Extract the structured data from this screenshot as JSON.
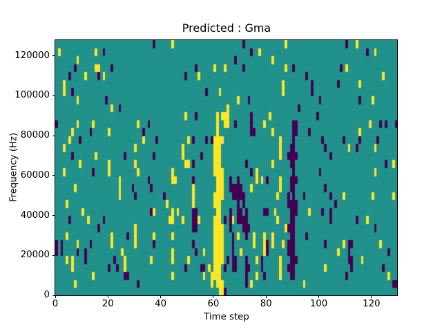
{
  "figure": {
    "title": "Predicted : Gma",
    "xlabel": "Time step",
    "ylabel": "Frequency (Hz)"
  },
  "chart_data": {
    "type": "heatmap",
    "title": "Predicted : Gma",
    "xlabel": "Time step",
    "ylabel": "Frequency (Hz)",
    "xlim": [
      0,
      130
    ],
    "ylim": [
      0,
      128000
    ],
    "grid_cols": 130,
    "grid_rows": 32,
    "x_ticks": [
      0,
      20,
      40,
      60,
      80,
      100,
      120
    ],
    "x_tick_labels": [
      "0",
      "20",
      "40",
      "60",
      "80",
      "100",
      "120"
    ],
    "y_ticks": [
      0,
      20000,
      40000,
      60000,
      80000,
      100000,
      120000
    ],
    "y_tick_labels": [
      "0",
      "20000",
      "40000",
      "60000",
      "80000",
      "100000",
      "120000"
    ],
    "legend": null,
    "grid": false,
    "colors": {
      "colormap": "viridis",
      "background": "#21918c",
      "high": "#fde725",
      "low": "#440154",
      "spine": "#000000",
      "figure_background": "#ffffff"
    },
    "cells_high": [
      [
        44,
        31
      ],
      [
        87,
        31
      ],
      [
        114,
        31
      ],
      [
        1,
        30
      ],
      [
        15,
        30
      ],
      [
        77,
        30
      ],
      [
        121,
        30
      ],
      [
        8,
        29
      ],
      [
        82,
        29
      ],
      [
        15,
        28
      ],
      [
        16,
        28
      ],
      [
        60,
        28
      ],
      [
        64,
        28
      ],
      [
        87,
        28
      ],
      [
        110,
        28
      ],
      [
        11,
        27
      ],
      [
        18,
        27
      ],
      [
        54,
        27
      ],
      [
        124,
        27
      ],
      [
        3,
        26
      ],
      [
        86,
        26
      ],
      [
        115,
        26
      ],
      [
        3,
        25
      ],
      [
        62,
        25
      ],
      [
        86,
        25
      ],
      [
        8,
        24
      ],
      [
        69,
        24
      ],
      [
        120,
        24
      ],
      [
        21,
        23
      ],
      [
        65,
        23
      ],
      [
        49,
        22
      ],
      [
        61,
        22
      ],
      [
        63,
        22
      ],
      [
        64,
        22
      ],
      [
        65,
        22
      ],
      [
        81,
        22
      ],
      [
        8,
        21
      ],
      [
        14,
        21
      ],
      [
        31,
        21
      ],
      [
        61,
        21
      ],
      [
        64,
        21
      ],
      [
        65,
        21
      ],
      [
        79,
        21
      ],
      [
        119,
        21
      ],
      [
        6,
        20
      ],
      [
        20,
        20
      ],
      [
        61,
        20
      ],
      [
        82,
        20
      ],
      [
        115,
        20
      ],
      [
        5,
        19
      ],
      [
        33,
        19
      ],
      [
        50,
        19
      ],
      [
        60,
        19
      ],
      [
        61,
        19
      ],
      [
        62,
        19
      ],
      [
        63,
        19
      ],
      [
        85,
        19
      ],
      [
        3,
        18
      ],
      [
        30,
        18
      ],
      [
        48,
        18
      ],
      [
        60,
        18
      ],
      [
        61,
        18
      ],
      [
        62,
        18
      ],
      [
        85,
        18
      ],
      [
        111,
        18
      ],
      [
        121,
        18
      ],
      [
        15,
        17
      ],
      [
        48,
        17
      ],
      [
        60,
        17
      ],
      [
        61,
        17
      ],
      [
        62,
        17
      ],
      [
        85,
        17
      ],
      [
        9,
        16
      ],
      [
        20,
        16
      ],
      [
        30,
        16
      ],
      [
        49,
        16
      ],
      [
        50,
        16
      ],
      [
        60,
        16
      ],
      [
        61,
        16
      ],
      [
        62,
        16
      ],
      [
        82,
        16
      ],
      [
        128,
        16
      ],
      [
        3,
        15
      ],
      [
        20,
        15
      ],
      [
        31,
        15
      ],
      [
        44,
        15
      ],
      [
        60,
        15
      ],
      [
        61,
        15
      ],
      [
        62,
        15
      ],
      [
        63,
        15
      ],
      [
        76,
        15
      ],
      [
        121,
        15
      ],
      [
        24,
        14
      ],
      [
        44,
        14
      ],
      [
        45,
        14
      ],
      [
        61,
        14
      ],
      [
        62,
        14
      ],
      [
        63,
        14
      ],
      [
        76,
        14
      ],
      [
        78,
        14
      ],
      [
        85,
        14
      ],
      [
        7,
        13
      ],
      [
        24,
        13
      ],
      [
        52,
        13
      ],
      [
        61,
        13
      ],
      [
        62,
        13
      ],
      [
        63,
        13
      ],
      [
        74,
        13
      ],
      [
        85,
        13
      ],
      [
        24,
        12
      ],
      [
        52,
        12
      ],
      [
        60,
        12
      ],
      [
        61,
        12
      ],
      [
        62,
        12
      ],
      [
        63,
        12
      ],
      [
        84,
        12
      ],
      [
        109,
        12
      ],
      [
        120,
        12
      ],
      [
        128,
        12
      ],
      [
        4,
        11
      ],
      [
        42,
        11
      ],
      [
        52,
        11
      ],
      [
        60,
        11
      ],
      [
        61,
        11
      ],
      [
        62,
        11
      ],
      [
        10,
        10
      ],
      [
        37,
        10
      ],
      [
        44,
        10
      ],
      [
        46,
        10
      ],
      [
        61,
        10
      ],
      [
        62,
        10
      ],
      [
        83,
        10
      ],
      [
        96,
        10
      ],
      [
        12,
        9
      ],
      [
        43,
        9
      ],
      [
        44,
        9
      ],
      [
        48,
        9
      ],
      [
        54,
        9
      ],
      [
        60,
        9
      ],
      [
        61,
        9
      ],
      [
        62,
        9
      ],
      [
        67,
        9
      ],
      [
        84,
        9
      ],
      [
        118,
        9
      ],
      [
        30,
        8
      ],
      [
        60,
        8
      ],
      [
        61,
        8
      ],
      [
        62,
        8
      ],
      [
        63,
        8
      ],
      [
        87,
        8
      ],
      [
        4,
        7
      ],
      [
        21,
        7
      ],
      [
        30,
        7
      ],
      [
        37,
        7
      ],
      [
        44,
        7
      ],
      [
        60,
        7
      ],
      [
        61,
        7
      ],
      [
        62,
        7
      ],
      [
        63,
        7
      ],
      [
        69,
        7
      ],
      [
        75,
        7
      ],
      [
        79,
        7
      ],
      [
        82,
        7
      ],
      [
        8,
        6
      ],
      [
        21,
        6
      ],
      [
        30,
        6
      ],
      [
        60,
        6
      ],
      [
        61,
        6
      ],
      [
        62,
        6
      ],
      [
        63,
        6
      ],
      [
        75,
        6
      ],
      [
        79,
        6
      ],
      [
        82,
        6
      ],
      [
        86,
        6
      ],
      [
        109,
        6
      ],
      [
        123,
        6
      ],
      [
        25,
        5
      ],
      [
        44,
        5
      ],
      [
        56,
        5
      ],
      [
        60,
        5
      ],
      [
        61,
        5
      ],
      [
        62,
        5
      ],
      [
        63,
        5
      ],
      [
        70,
        5
      ],
      [
        79,
        5
      ],
      [
        107,
        5
      ],
      [
        4,
        4
      ],
      [
        6,
        4
      ],
      [
        26,
        4
      ],
      [
        36,
        4
      ],
      [
        44,
        4
      ],
      [
        50,
        4
      ],
      [
        60,
        4
      ],
      [
        61,
        4
      ],
      [
        62,
        4
      ],
      [
        63,
        4
      ],
      [
        76,
        4
      ],
      [
        85,
        4
      ],
      [
        116,
        4
      ],
      [
        6,
        3
      ],
      [
        26,
        3
      ],
      [
        58,
        3
      ],
      [
        60,
        3
      ],
      [
        61,
        3
      ],
      [
        62,
        3
      ],
      [
        85,
        3
      ],
      [
        102,
        3
      ],
      [
        14,
        2
      ],
      [
        44,
        2
      ],
      [
        56,
        2
      ],
      [
        59,
        2
      ],
      [
        60,
        2
      ],
      [
        61,
        2
      ],
      [
        62,
        2
      ],
      [
        76,
        2
      ],
      [
        85,
        2
      ],
      [
        126,
        2
      ],
      [
        7,
        1
      ],
      [
        59,
        1
      ],
      [
        61,
        1
      ],
      [
        62,
        1
      ],
      [
        63,
        1
      ],
      [
        74,
        1
      ],
      [
        94,
        1
      ],
      [
        62,
        0
      ],
      [
        63,
        0
      ]
    ],
    "cells_low": [
      [
        37,
        31
      ],
      [
        71,
        31
      ],
      [
        110,
        31
      ],
      [
        18,
        30
      ],
      [
        74,
        30
      ],
      [
        118,
        30
      ],
      [
        68,
        29
      ],
      [
        7,
        28
      ],
      [
        21,
        28
      ],
      [
        53,
        28
      ],
      [
        71,
        28
      ],
      [
        90,
        28
      ],
      [
        108,
        28
      ],
      [
        5,
        27
      ],
      [
        16,
        27
      ],
      [
        49,
        27
      ],
      [
        95,
        27
      ],
      [
        97,
        26
      ],
      [
        107,
        26
      ],
      [
        6,
        25
      ],
      [
        57,
        25
      ],
      [
        97,
        25
      ],
      [
        19,
        24
      ],
      [
        73,
        24
      ],
      [
        100,
        24
      ],
      [
        115,
        24
      ],
      [
        24,
        23
      ],
      [
        92,
        23
      ],
      [
        53,
        22
      ],
      [
        74,
        22
      ],
      [
        99,
        22
      ],
      [
        0,
        21
      ],
      [
        35,
        21
      ],
      [
        68,
        21
      ],
      [
        74,
        21
      ],
      [
        90,
        21
      ],
      [
        91,
        21
      ],
      [
        123,
        21
      ],
      [
        125,
        21
      ],
      [
        129,
        21
      ],
      [
        13,
        20
      ],
      [
        33,
        20
      ],
      [
        74,
        20
      ],
      [
        75,
        20
      ],
      [
        90,
        20
      ],
      [
        91,
        20
      ],
      [
        96,
        20
      ],
      [
        9,
        19
      ],
      [
        38,
        19
      ],
      [
        52,
        19
      ],
      [
        57,
        19
      ],
      [
        59,
        19
      ],
      [
        90,
        19
      ],
      [
        101,
        19
      ],
      [
        109,
        19
      ],
      [
        115,
        19
      ],
      [
        122,
        19
      ],
      [
        89,
        18
      ],
      [
        90,
        18
      ],
      [
        102,
        18
      ],
      [
        114,
        18
      ],
      [
        6,
        17
      ],
      [
        26,
        17
      ],
      [
        37,
        17
      ],
      [
        55,
        17
      ],
      [
        88,
        17
      ],
      [
        89,
        17
      ],
      [
        90,
        17
      ],
      [
        91,
        17
      ],
      [
        104,
        17
      ],
      [
        52,
        16
      ],
      [
        72,
        16
      ],
      [
        89,
        16
      ],
      [
        90,
        16
      ],
      [
        125,
        16
      ],
      [
        14,
        15
      ],
      [
        74,
        15
      ],
      [
        90,
        15
      ],
      [
        100,
        15
      ],
      [
        35,
        14
      ],
      [
        52,
        14
      ],
      [
        66,
        14
      ],
      [
        69,
        14
      ],
      [
        80,
        14
      ],
      [
        89,
        14
      ],
      [
        90,
        14
      ],
      [
        91,
        14
      ],
      [
        29,
        13
      ],
      [
        36,
        13
      ],
      [
        66,
        13
      ],
      [
        67,
        13
      ],
      [
        68,
        13
      ],
      [
        69,
        13
      ],
      [
        70,
        13
      ],
      [
        89,
        13
      ],
      [
        90,
        13
      ],
      [
        102,
        13
      ],
      [
        30,
        12
      ],
      [
        41,
        12
      ],
      [
        67,
        12
      ],
      [
        68,
        12
      ],
      [
        69,
        12
      ],
      [
        70,
        12
      ],
      [
        71,
        12
      ],
      [
        88,
        12
      ],
      [
        90,
        12
      ],
      [
        94,
        12
      ],
      [
        104,
        12
      ],
      [
        69,
        11
      ],
      [
        71,
        11
      ],
      [
        88,
        11
      ],
      [
        89,
        11
      ],
      [
        90,
        11
      ],
      [
        91,
        11
      ],
      [
        106,
        11
      ],
      [
        36,
        10
      ],
      [
        52,
        10
      ],
      [
        53,
        10
      ],
      [
        66,
        10
      ],
      [
        69,
        10
      ],
      [
        70,
        10
      ],
      [
        72,
        10
      ],
      [
        79,
        10
      ],
      [
        80,
        10
      ],
      [
        89,
        10
      ],
      [
        90,
        10
      ],
      [
        91,
        10
      ],
      [
        101,
        10
      ],
      [
        104,
        10
      ],
      [
        5,
        9
      ],
      [
        18,
        9
      ],
      [
        52,
        9
      ],
      [
        53,
        9
      ],
      [
        64,
        9
      ],
      [
        66,
        9
      ],
      [
        69,
        9
      ],
      [
        70,
        9
      ],
      [
        71,
        9
      ],
      [
        72,
        9
      ],
      [
        89,
        9
      ],
      [
        90,
        9
      ],
      [
        104,
        9
      ],
      [
        114,
        9
      ],
      [
        16,
        8
      ],
      [
        52,
        8
      ],
      [
        53,
        8
      ],
      [
        66,
        8
      ],
      [
        71,
        8
      ],
      [
        72,
        8
      ],
      [
        73,
        8
      ],
      [
        88,
        8
      ],
      [
        89,
        8
      ],
      [
        90,
        8
      ],
      [
        121,
        8
      ],
      [
        27,
        7
      ],
      [
        67,
        7
      ],
      [
        72,
        7
      ],
      [
        89,
        7
      ],
      [
        90,
        7
      ],
      [
        95,
        7
      ],
      [
        0,
        6
      ],
      [
        2,
        6
      ],
      [
        13,
        6
      ],
      [
        37,
        6
      ],
      [
        52,
        6
      ],
      [
        67,
        6
      ],
      [
        80,
        6
      ],
      [
        88,
        6
      ],
      [
        89,
        6
      ],
      [
        90,
        6
      ],
      [
        102,
        6
      ],
      [
        111,
        6
      ],
      [
        112,
        6
      ],
      [
        0,
        5
      ],
      [
        2,
        5
      ],
      [
        8,
        5
      ],
      [
        11,
        5
      ],
      [
        53,
        5
      ],
      [
        67,
        5
      ],
      [
        80,
        5
      ],
      [
        88,
        5
      ],
      [
        89,
        5
      ],
      [
        90,
        5
      ],
      [
        111,
        5
      ],
      [
        126,
        5
      ],
      [
        11,
        4
      ],
      [
        22,
        4
      ],
      [
        65,
        4
      ],
      [
        67,
        4
      ],
      [
        68,
        4
      ],
      [
        72,
        4
      ],
      [
        78,
        4
      ],
      [
        89,
        4
      ],
      [
        90,
        4
      ],
      [
        91,
        4
      ],
      [
        111,
        4
      ],
      [
        112,
        4
      ],
      [
        20,
        3
      ],
      [
        23,
        3
      ],
      [
        49,
        3
      ],
      [
        55,
        3
      ],
      [
        56,
        3
      ],
      [
        64,
        3
      ],
      [
        67,
        3
      ],
      [
        68,
        3
      ],
      [
        72,
        3
      ],
      [
        73,
        3
      ],
      [
        78,
        3
      ],
      [
        88,
        3
      ],
      [
        89,
        3
      ],
      [
        90,
        3
      ],
      [
        112,
        3
      ],
      [
        124,
        3
      ],
      [
        26,
        2
      ],
      [
        27,
        2
      ],
      [
        72,
        2
      ],
      [
        79,
        2
      ],
      [
        89,
        2
      ],
      [
        90,
        2
      ],
      [
        110,
        2
      ],
      [
        31,
        1
      ],
      [
        72,
        1
      ],
      [
        128,
        1
      ],
      [
        129,
        1
      ],
      [
        64,
        0
      ]
    ]
  }
}
